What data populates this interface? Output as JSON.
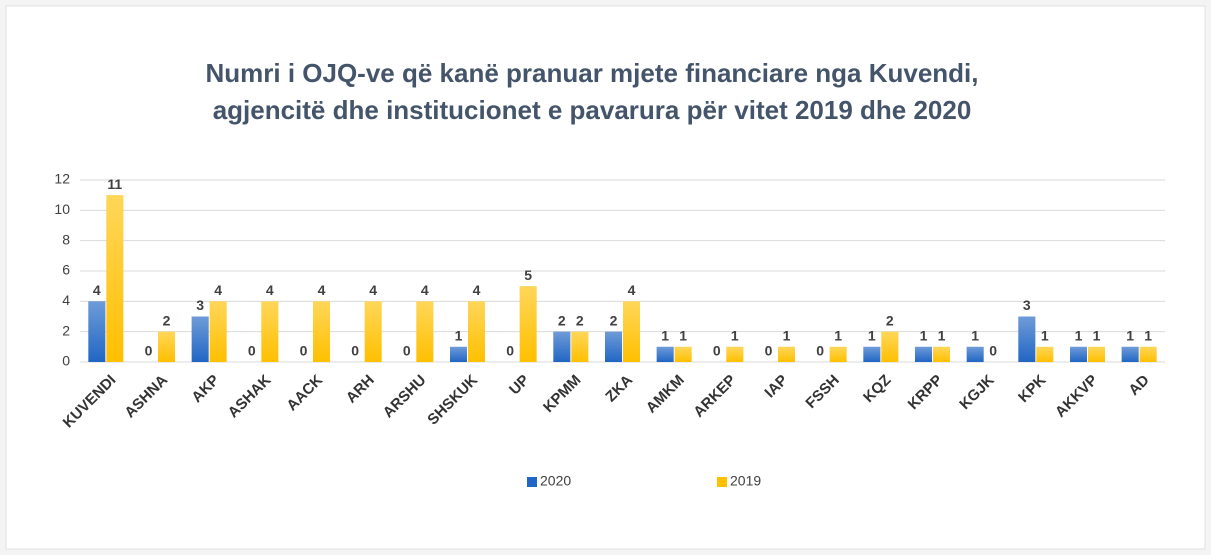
{
  "chart_data": {
    "type": "bar",
    "title": [
      "Numri i OJQ-ve që kanë pranuar mjete financiare nga Kuvendi,",
      "agjencitë dhe institucionet e pavarura për vitet 2019 dhe 2020"
    ],
    "categories": [
      "KUVENDI",
      "ASHNA",
      "AKP",
      "ASHAK",
      "AACK",
      "ARH",
      "ARSHU",
      "SHSKUK",
      "UP",
      "KPMM",
      "ZKA",
      "AMKM",
      "ARKEP",
      "IAP",
      "FSSH",
      "KQZ",
      "KRPP",
      "KGJK",
      "KPK",
      "AKKVP",
      "AD"
    ],
    "series": [
      {
        "name": "2020",
        "color": "#2166c4",
        "values": [
          4,
          0,
          3,
          0,
          0,
          0,
          0,
          1,
          0,
          2,
          2,
          1,
          0,
          0,
          0,
          1,
          1,
          1,
          3,
          1,
          1
        ]
      },
      {
        "name": "2019",
        "color": "#ffc000",
        "values": [
          11,
          2,
          4,
          4,
          4,
          4,
          4,
          4,
          5,
          2,
          4,
          1,
          1,
          1,
          1,
          2,
          1,
          0,
          1,
          1,
          1
        ]
      }
    ],
    "ylim": [
      0,
      12
    ],
    "yticks": [
      0,
      2,
      4,
      6,
      8,
      10,
      12
    ],
    "grid": true,
    "legend": "bottom"
  }
}
